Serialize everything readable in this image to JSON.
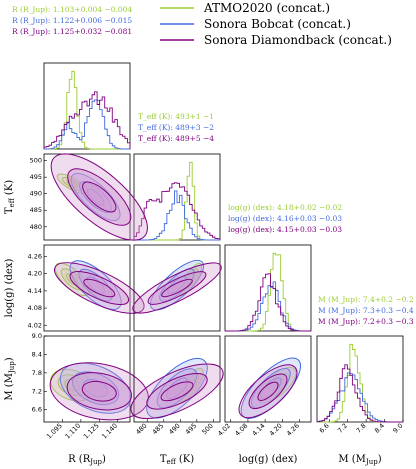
{
  "chart_data": {
    "type": "corner-plot",
    "legend": {
      "placement": "top-right",
      "entries": [
        {
          "name": "ATMO2020 (concat.)",
          "color": "#9acd32"
        },
        {
          "name": "Sonora Bobcat (concat.)",
          "color": "#4169e1"
        },
        {
          "name": "Sonora Diamondback (concat.)",
          "color": "#800080"
        }
      ]
    },
    "parameters": [
      {
        "key": "R",
        "xlabel": "R (R$_{Jup}$)",
        "ylabel": "",
        "range": [
          1.08,
          1.15
        ],
        "ticks": [
          "1.095",
          "1.110",
          "1.125",
          "1.140"
        ],
        "tick_values": [
          1.095,
          1.11,
          1.125,
          1.14
        ],
        "annotations": [
          {
            "text": "R (R_Jup): 1.103+0.004 −0.004",
            "color": "#9acd32"
          },
          {
            "text": "R (R_Jup): 1.122+0.006 −0.015",
            "color": "#4169e1"
          },
          {
            "text": "R (R_Jup): 1.125+0.032 −0.081",
            "color": "#800080"
          }
        ]
      },
      {
        "key": "Teff",
        "xlabel": "T$_{eff}$ (K)",
        "ylabel": "T$_{eff}$ (K)",
        "range": [
          476,
          502
        ],
        "ticks": [
          "480",
          "485",
          "490",
          "495",
          "500"
        ],
        "tick_values": [
          480,
          485,
          490,
          495,
          500
        ],
        "annotations": [
          {
            "text": "T_eff (K): 493+1 −1",
            "color": "#9acd32"
          },
          {
            "text": "T_eff (K): 489+3 −2",
            "color": "#4169e1"
          },
          {
            "text": "T_eff (K): 489+5 −4",
            "color": "#800080"
          }
        ]
      },
      {
        "key": "logg",
        "xlabel": "log(g) (dex)",
        "ylabel": "log(g) (dex)",
        "range": [
          4.0,
          4.3
        ],
        "ticks": [
          "4.02",
          "4.08",
          "4.14",
          "4.20",
          "4.26"
        ],
        "tick_values": [
          4.02,
          4.08,
          4.14,
          4.2,
          4.26
        ],
        "annotations": [
          {
            "text": "log(g) (dex): 4.18+0.02 −0.02",
            "color": "#9acd32"
          },
          {
            "text": "log(g) (dex): 4.16+0.03 −0.03",
            "color": "#4169e1"
          },
          {
            "text": "log(g) (dex): 4.15+0.03 −0.03",
            "color": "#800080"
          }
        ]
      },
      {
        "key": "M",
        "xlabel": "M (M$_{Jup}$)",
        "ylabel": "M (M$_{Jup}$)",
        "range": [
          6.2,
          9.0
        ],
        "ticks": [
          "6.6",
          "7.2",
          "7.8",
          "8.4",
          "9.0"
        ],
        "tick_values": [
          6.6,
          7.2,
          7.8,
          8.4,
          9.0
        ],
        "annotations": [
          {
            "text": "M (M_Jup): 7.4+0.2 −0.2",
            "color": "#9acd32"
          },
          {
            "text": "M (M_Jup): 7.3+0.3 −0.4",
            "color": "#4169e1"
          },
          {
            "text": "M (M_Jup): 7.2+0.3 −0.3",
            "color": "#800080"
          }
        ]
      }
    ],
    "models": [
      {
        "name": "ATMO2020 (concat.)",
        "color": "#9acd32",
        "fill": "#d6ec9a",
        "medians": {
          "R": 1.103,
          "Teff": 493,
          "logg": 4.18,
          "M": 7.4
        },
        "sigmas": {
          "R": 0.004,
          "Teff": 1,
          "logg": 0.02,
          "M": 0.2
        }
      },
      {
        "name": "Sonora Bobcat (concat.)",
        "color": "#4169e1",
        "fill": "#a9b9f0",
        "medians": {
          "R": 1.122,
          "Teff": 489,
          "logg": 4.16,
          "M": 7.3
        },
        "sigmas": {
          "R": 0.006,
          "Teff": 2.5,
          "logg": 0.03,
          "M": 0.35
        }
      },
      {
        "name": "Sonora Diamondback (concat.)",
        "color": "#800080",
        "fill": "#d29ad2",
        "medians": {
          "R": 1.125,
          "Teff": 489,
          "logg": 4.15,
          "M": 7.2
        },
        "sigmas": {
          "R": 0.012,
          "Teff": 4.5,
          "logg": 0.03,
          "M": 0.3
        }
      }
    ]
  }
}
